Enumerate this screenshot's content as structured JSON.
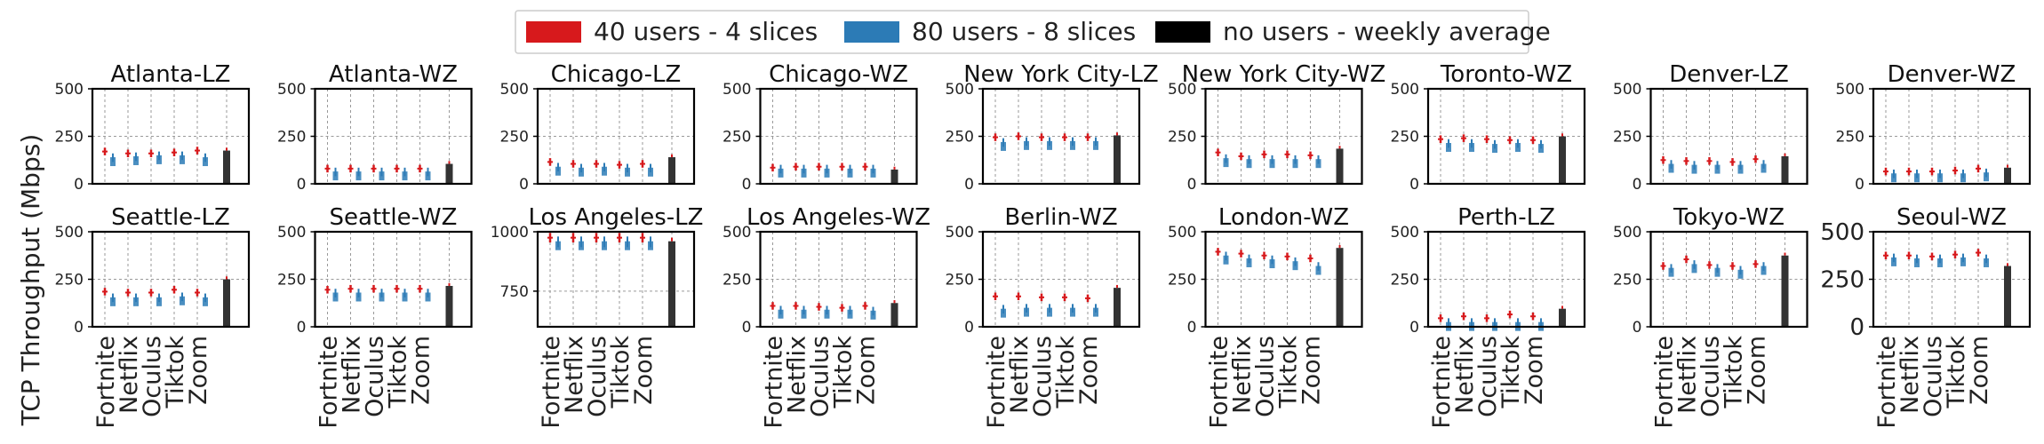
{
  "figure": {
    "ylabel": "TCP Throughput (Mbps)",
    "legend": [
      {
        "label": "40 users - 4 slices",
        "color": "#d7191c"
      },
      {
        "label": "80 users - 8 slices",
        "color": "#2c7bb6"
      },
      {
        "label": "no users - weekly average",
        "color": "#000000"
      }
    ],
    "app_labels": [
      "Fortnite",
      "Netflix",
      "Oculus",
      "Tiktok",
      "Zoom"
    ]
  },
  "chart_data": [
    {
      "type": "bar",
      "title": "Atlanta-LZ",
      "yticks": [
        0,
        250,
        500
      ],
      "ylim": [
        0,
        500
      ],
      "series": [
        {
          "name": "40 users - 4 slices",
          "values": [
            170,
            160,
            160,
            165,
            175
          ]
        },
        {
          "name": "80 users - 8 slices",
          "values": [
            140,
            145,
            150,
            150,
            140
          ]
        },
        {
          "name": "no users - weekly average",
          "values": [
            175
          ]
        }
      ]
    },
    {
      "type": "bar",
      "title": "Atlanta-WZ",
      "yticks": [
        0,
        250,
        500
      ],
      "ylim": [
        0,
        500
      ],
      "series": [
        {
          "name": "40 users - 4 slices",
          "values": [
            80,
            80,
            80,
            80,
            80
          ]
        },
        {
          "name": "80 users - 8 slices",
          "values": [
            65,
            65,
            65,
            65,
            65
          ]
        },
        {
          "name": "no users - weekly average",
          "values": [
            105
          ]
        }
      ]
    },
    {
      "type": "bar",
      "title": "Chicago-LZ",
      "yticks": [
        0,
        250,
        500
      ],
      "ylim": [
        0,
        500
      ],
      "series": [
        {
          "name": "40 users - 4 slices",
          "values": [
            115,
            105,
            105,
            100,
            105
          ]
        },
        {
          "name": "80 users - 8 slices",
          "values": [
            90,
            85,
            90,
            85,
            85
          ]
        },
        {
          "name": "no users - weekly average",
          "values": [
            140
          ]
        }
      ]
    },
    {
      "type": "bar",
      "title": "Chicago-WZ",
      "yticks": [
        0,
        250,
        500
      ],
      "ylim": [
        0,
        500
      ],
      "series": [
        {
          "name": "40 users - 4 slices",
          "values": [
            85,
            90,
            90,
            90,
            90
          ]
        },
        {
          "name": "80 users - 8 slices",
          "values": [
            80,
            80,
            80,
            80,
            80
          ]
        },
        {
          "name": "no users - weekly average",
          "values": [
            75
          ]
        }
      ]
    },
    {
      "type": "bar",
      "title": "New York City-LZ",
      "yticks": [
        0,
        250,
        500
      ],
      "ylim": [
        0,
        500
      ],
      "series": [
        {
          "name": "40 users - 4 slices",
          "values": [
            245,
            250,
            245,
            245,
            245
          ]
        },
        {
          "name": "80 users - 8 slices",
          "values": [
            220,
            225,
            225,
            225,
            225
          ]
        },
        {
          "name": "no users - weekly average",
          "values": [
            255
          ]
        }
      ]
    },
    {
      "type": "bar",
      "title": "New York City-WZ",
      "yticks": [
        0,
        250,
        500
      ],
      "ylim": [
        0,
        500
      ],
      "series": [
        {
          "name": "40 users - 4 slices",
          "values": [
            165,
            145,
            155,
            155,
            150
          ]
        },
        {
          "name": "80 users - 8 slices",
          "values": [
            135,
            130,
            130,
            130,
            130
          ]
        },
        {
          "name": "no users - weekly average",
          "values": [
            185
          ]
        }
      ]
    },
    {
      "type": "bar",
      "title": "Toronto-WZ",
      "yticks": [
        0,
        250,
        500
      ],
      "ylim": [
        0,
        500
      ],
      "series": [
        {
          "name": "40 users - 4 slices",
          "values": [
            235,
            240,
            235,
            230,
            230
          ]
        },
        {
          "name": "80 users - 8 slices",
          "values": [
            215,
            215,
            210,
            215,
            210
          ]
        },
        {
          "name": "no users - weekly average",
          "values": [
            250
          ]
        }
      ]
    },
    {
      "type": "bar",
      "title": "Denver-LZ",
      "yticks": [
        0,
        250,
        500
      ],
      "ylim": [
        0,
        500
      ],
      "series": [
        {
          "name": "40 users - 4 slices",
          "values": [
            125,
            120,
            120,
            115,
            130
          ]
        },
        {
          "name": "80 users - 8 slices",
          "values": [
            105,
            100,
            100,
            100,
            105
          ]
        },
        {
          "name": "no users - weekly average",
          "values": [
            145
          ]
        }
      ]
    },
    {
      "type": "bar",
      "title": "Denver-WZ",
      "yticks": [
        0,
        250,
        500
      ],
      "ylim": [
        0,
        500
      ],
      "series": [
        {
          "name": "40 users - 4 slices",
          "values": [
            65,
            65,
            65,
            70,
            80
          ]
        },
        {
          "name": "80 users - 8 slices",
          "values": [
            55,
            55,
            55,
            55,
            60
          ]
        },
        {
          "name": "no users - weekly average",
          "values": [
            85
          ]
        }
      ]
    },
    {
      "type": "bar",
      "title": "Seattle-LZ",
      "yticks": [
        0,
        250,
        500
      ],
      "ylim": [
        0,
        500
      ],
      "series": [
        {
          "name": "40 users - 4 slices",
          "values": [
            185,
            180,
            180,
            195,
            180
          ]
        },
        {
          "name": "80 users - 8 slices",
          "values": [
            155,
            155,
            155,
            160,
            155
          ]
        },
        {
          "name": "no users - weekly average",
          "values": [
            250
          ]
        }
      ]
    },
    {
      "type": "bar",
      "title": "Seattle-WZ",
      "yticks": [
        0,
        250,
        500
      ],
      "ylim": [
        0,
        500
      ],
      "series": [
        {
          "name": "40 users - 4 slices",
          "values": [
            195,
            200,
            200,
            200,
            200
          ]
        },
        {
          "name": "80 users - 8 slices",
          "values": [
            180,
            180,
            180,
            180,
            180
          ]
        },
        {
          "name": "no users - weekly average",
          "values": [
            215
          ]
        }
      ]
    },
    {
      "type": "bar",
      "title": "Los Angeles-LZ",
      "yticks": [
        750,
        1000
      ],
      "ylim": [
        600,
        1000
      ],
      "series": [
        {
          "name": "40 users - 4 slices",
          "values": [
            975,
            975,
            975,
            975,
            975
          ]
        },
        {
          "name": "80 users - 8 slices",
          "values": [
            960,
            960,
            960,
            960,
            960
          ]
        },
        {
          "name": "no users - weekly average",
          "values": [
            960
          ]
        }
      ]
    },
    {
      "type": "bar",
      "title": "Los Angeles-WZ",
      "yticks": [
        0,
        250,
        500
      ],
      "ylim": [
        0,
        500
      ],
      "series": [
        {
          "name": "40 users - 4 slices",
          "values": [
            110,
            110,
            105,
            100,
            110
          ]
        },
        {
          "name": "80 users - 8 slices",
          "values": [
            90,
            90,
            90,
            90,
            85
          ]
        },
        {
          "name": "no users - weekly average",
          "values": [
            125
          ]
        }
      ]
    },
    {
      "type": "bar",
      "title": "Berlin-WZ",
      "yticks": [
        0,
        250,
        500
      ],
      "ylim": [
        0,
        500
      ],
      "series": [
        {
          "name": "40 users - 4 slices",
          "values": [
            160,
            160,
            155,
            155,
            150
          ]
        },
        {
          "name": "80 users - 8 slices",
          "values": [
            95,
            100,
            100,
            100,
            100
          ]
        },
        {
          "name": "no users - weekly average",
          "values": [
            205
          ]
        }
      ]
    },
    {
      "type": "bar",
      "title": "London-WZ",
      "yticks": [
        0,
        250,
        500
      ],
      "ylim": [
        0,
        500
      ],
      "series": [
        {
          "name": "40 users - 4 slices",
          "values": [
            395,
            385,
            375,
            370,
            360
          ]
        },
        {
          "name": "80 users - 8 slices",
          "values": [
            375,
            360,
            355,
            345,
            320
          ]
        },
        {
          "name": "no users - weekly average",
          "values": [
            415
          ]
        }
      ]
    },
    {
      "type": "bar",
      "title": "Perth-LZ",
      "yticks": [
        0,
        250,
        500
      ],
      "ylim": [
        0,
        500
      ],
      "series": [
        {
          "name": "40 users - 4 slices",
          "values": [
            45,
            55,
            45,
            65,
            55
          ]
        },
        {
          "name": "80 users - 8 slices",
          "values": [
            25,
            25,
            25,
            25,
            25
          ]
        },
        {
          "name": "no users - weekly average",
          "values": [
            95
          ]
        }
      ]
    },
    {
      "type": "bar",
      "title": "Tokyo-WZ",
      "yticks": [
        0,
        250,
        500
      ],
      "ylim": [
        0,
        500
      ],
      "series": [
        {
          "name": "40 users - 4 slices",
          "values": [
            320,
            355,
            325,
            320,
            330
          ]
        },
        {
          "name": "80 users - 8 slices",
          "values": [
            310,
            330,
            310,
            300,
            320
          ]
        },
        {
          "name": "no users - weekly average",
          "values": [
            375
          ]
        }
      ]
    },
    {
      "type": "bar",
      "title": "Seoul-WZ",
      "yticks": [
        0,
        250,
        500
      ],
      "ylim": [
        0,
        500
      ],
      "series": [
        {
          "name": "40 users - 4 slices",
          "values": [
            375,
            375,
            370,
            380,
            390
          ]
        },
        {
          "name": "80 users - 8 slices",
          "values": [
            365,
            360,
            360,
            365,
            360
          ]
        },
        {
          "name": "no users - weekly average",
          "values": [
            320
          ]
        }
      ]
    }
  ]
}
